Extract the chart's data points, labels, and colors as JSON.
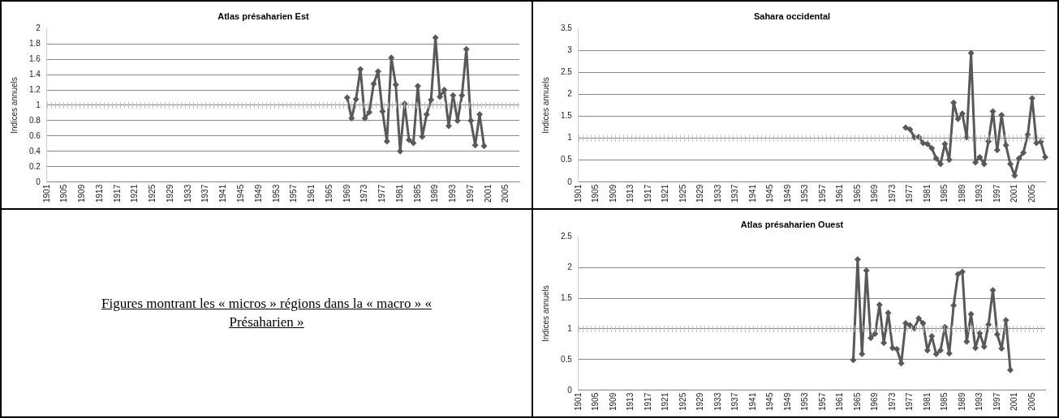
{
  "chart_data": [
    {
      "type": "line",
      "title": "Atlas présaharien Est",
      "ylabel": "Indices annuels",
      "categories": [
        "1901",
        null,
        null,
        null,
        "1905",
        null,
        null,
        null,
        "1909",
        null,
        null,
        null,
        "1913",
        null,
        null,
        null,
        "1917",
        null,
        null,
        null,
        "1921",
        null,
        null,
        null,
        "1925",
        null,
        null,
        null,
        "1929",
        null,
        null,
        null,
        "1933",
        null,
        null,
        null,
        "1937",
        null,
        null,
        null,
        "1941",
        null,
        null,
        null,
        "1945",
        null,
        null,
        null,
        "1949",
        null,
        null,
        null,
        "1953",
        null,
        null,
        null,
        "1957",
        null,
        null,
        null,
        "1961",
        null,
        null,
        null,
        "1965",
        null,
        null,
        null,
        "1969",
        null,
        null,
        null,
        "1973",
        null,
        null,
        null,
        "1977",
        null,
        null,
        null,
        "1981",
        null,
        null,
        null,
        "1985",
        null,
        null,
        null,
        "1989",
        null,
        null,
        null,
        "1993",
        null,
        null,
        null,
        "1997",
        null,
        null,
        null,
        "2001",
        null,
        null,
        null,
        "2005",
        null,
        null,
        null
      ],
      "series": [
        {
          "color": "#595959",
          "values": [
            null,
            null,
            null,
            null,
            null,
            null,
            null,
            null,
            null,
            null,
            null,
            null,
            null,
            null,
            null,
            null,
            null,
            null,
            null,
            null,
            null,
            null,
            null,
            null,
            null,
            null,
            null,
            null,
            null,
            null,
            null,
            null,
            null,
            null,
            null,
            null,
            null,
            null,
            null,
            null,
            null,
            null,
            null,
            null,
            null,
            null,
            null,
            null,
            null,
            null,
            null,
            null,
            null,
            null,
            null,
            null,
            null,
            null,
            null,
            null,
            null,
            null,
            null,
            null,
            null,
            null,
            null,
            null,
            1.1,
            0.83,
            1.08,
            1.47,
            0.83,
            0.91,
            1.28,
            1.44,
            0.92,
            0.53,
            1.62,
            1.27,
            0.4,
            1.02,
            0.55,
            0.51,
            1.25,
            0.59,
            0.88,
            1.07,
            1.88,
            1.11,
            1.2,
            0.73,
            1.13,
            0.8,
            1.13,
            1.73,
            0.8,
            0.48,
            0.88,
            0.47,
            null,
            null,
            null,
            null,
            null,
            null,
            null,
            null
          ]
        }
      ],
      "ylim": [
        0,
        2
      ],
      "yticks": [
        0,
        0.2,
        0.4,
        0.6,
        0.8,
        1,
        1.2,
        1.4,
        1.6,
        1.8,
        2
      ],
      "grid": "y",
      "marker": "diamond",
      "line_style": "solid",
      "ref_lines": [
        {
          "axis": "y",
          "value": 1,
          "color": "#bfbfbf",
          "line_style": "dotted"
        }
      ]
    },
    {
      "type": "line",
      "title": "Sahara occidental",
      "ylabel": "Indices annuels",
      "categories": [
        "1901",
        null,
        null,
        null,
        "1905",
        null,
        null,
        null,
        "1909",
        null,
        null,
        null,
        "1913",
        null,
        null,
        null,
        "1917",
        null,
        null,
        null,
        "1921",
        null,
        null,
        null,
        "1925",
        null,
        null,
        null,
        "1929",
        null,
        null,
        null,
        "1933",
        null,
        null,
        null,
        "1937",
        null,
        null,
        null,
        "1941",
        null,
        null,
        null,
        "1945",
        null,
        null,
        null,
        "1949",
        null,
        null,
        null,
        "1953",
        null,
        null,
        null,
        "1957",
        null,
        null,
        null,
        "1961",
        null,
        null,
        null,
        "1965",
        null,
        null,
        null,
        "1969",
        null,
        null,
        null,
        "1973",
        null,
        null,
        null,
        "1977",
        null,
        null,
        null,
        "1981",
        null,
        null,
        null,
        "1985",
        null,
        null,
        null,
        "1989",
        null,
        null,
        null,
        "1993",
        null,
        null,
        null,
        "1997",
        null,
        null,
        null,
        "2001",
        null,
        null,
        null,
        "2005",
        null,
        null,
        null
      ],
      "series": [
        {
          "color": "#595959",
          "values": [
            null,
            null,
            null,
            null,
            null,
            null,
            null,
            null,
            null,
            null,
            null,
            null,
            null,
            null,
            null,
            null,
            null,
            null,
            null,
            null,
            null,
            null,
            null,
            null,
            null,
            null,
            null,
            null,
            null,
            null,
            null,
            null,
            null,
            null,
            null,
            null,
            null,
            null,
            null,
            null,
            null,
            null,
            null,
            null,
            null,
            null,
            null,
            null,
            null,
            null,
            null,
            null,
            null,
            null,
            null,
            null,
            null,
            null,
            null,
            null,
            null,
            null,
            null,
            null,
            null,
            null,
            null,
            null,
            null,
            null,
            null,
            null,
            null,
            null,
            null,
            1.24,
            1.2,
            1.02,
            1.03,
            0.89,
            0.87,
            0.77,
            0.54,
            0.41,
            0.87,
            0.51,
            1.81,
            1.44,
            1.56,
            1.02,
            2.94,
            0.45,
            0.57,
            0.41,
            0.93,
            1.61,
            0.73,
            1.53,
            0.84,
            0.41,
            0.15,
            0.54,
            0.67,
            1.08,
            1.91,
            0.89,
            0.92,
            0.57
          ]
        }
      ],
      "ylim": [
        0,
        3.5
      ],
      "yticks": [
        0,
        0.5,
        1,
        1.5,
        2,
        2.5,
        3,
        3.5
      ],
      "grid": "y",
      "marker": "diamond",
      "line_style": "solid",
      "ref_lines": [
        {
          "axis": "y",
          "value": 1,
          "color": "#bfbfbf",
          "line_style": "dotted"
        }
      ]
    },
    {
      "type": "other",
      "annotations": [
        "Figures montrant les « micros » régions dans la « macro » « Présaharien »"
      ]
    },
    {
      "type": "line",
      "title": "Atlas présaharien Ouest",
      "ylabel": "Indices annuels",
      "categories": [
        "1901",
        null,
        null,
        null,
        "1905",
        null,
        null,
        null,
        "1909",
        null,
        null,
        null,
        "1913",
        null,
        null,
        null,
        "1917",
        null,
        null,
        null,
        "1921",
        null,
        null,
        null,
        "1925",
        null,
        null,
        null,
        "1929",
        null,
        null,
        null,
        "1933",
        null,
        null,
        null,
        "1937",
        null,
        null,
        null,
        "1941",
        null,
        null,
        null,
        "1945",
        null,
        null,
        null,
        "1949",
        null,
        null,
        null,
        "1953",
        null,
        null,
        null,
        "1957",
        null,
        null,
        null,
        "1961",
        null,
        null,
        null,
        "1965",
        null,
        null,
        null,
        "1969",
        null,
        null,
        null,
        "1973",
        null,
        null,
        null,
        "1977",
        null,
        null,
        null,
        "1981",
        null,
        null,
        null,
        "1985",
        null,
        null,
        null,
        "1989",
        null,
        null,
        null,
        "1993",
        null,
        null,
        null,
        "1997",
        null,
        null,
        null,
        "2001",
        null,
        null,
        null,
        "2005",
        null,
        null,
        null
      ],
      "series": [
        {
          "color": "#595959",
          "values": [
            null,
            null,
            null,
            null,
            null,
            null,
            null,
            null,
            null,
            null,
            null,
            null,
            null,
            null,
            null,
            null,
            null,
            null,
            null,
            null,
            null,
            null,
            null,
            null,
            null,
            null,
            null,
            null,
            null,
            null,
            null,
            null,
            null,
            null,
            null,
            null,
            null,
            null,
            null,
            null,
            null,
            null,
            null,
            null,
            null,
            null,
            null,
            null,
            null,
            null,
            null,
            null,
            null,
            null,
            null,
            null,
            null,
            null,
            null,
            null,
            null,
            null,
            null,
            0.49,
            2.13,
            0.59,
            1.95,
            0.85,
            0.92,
            1.39,
            0.77,
            1.26,
            0.69,
            0.67,
            0.44,
            1.09,
            1.06,
            1.01,
            1.17,
            1.09,
            0.65,
            0.88,
            0.59,
            0.65,
            1.03,
            0.6,
            1.38,
            1.89,
            1.93,
            0.79,
            1.24,
            0.69,
            0.93,
            0.71,
            1.07,
            1.63,
            0.91,
            0.68,
            1.14,
            0.33,
            null,
            null,
            null,
            null,
            null,
            null,
            null,
            null
          ]
        }
      ],
      "ylim": [
        0,
        2.5
      ],
      "yticks": [
        0,
        0.5,
        1,
        1.5,
        2,
        2.5
      ],
      "grid": "y",
      "marker": "diamond",
      "line_style": "solid",
      "ref_lines": [
        {
          "axis": "y",
          "value": 1,
          "color": "#bfbfbf",
          "line_style": "dotted"
        }
      ]
    }
  ]
}
